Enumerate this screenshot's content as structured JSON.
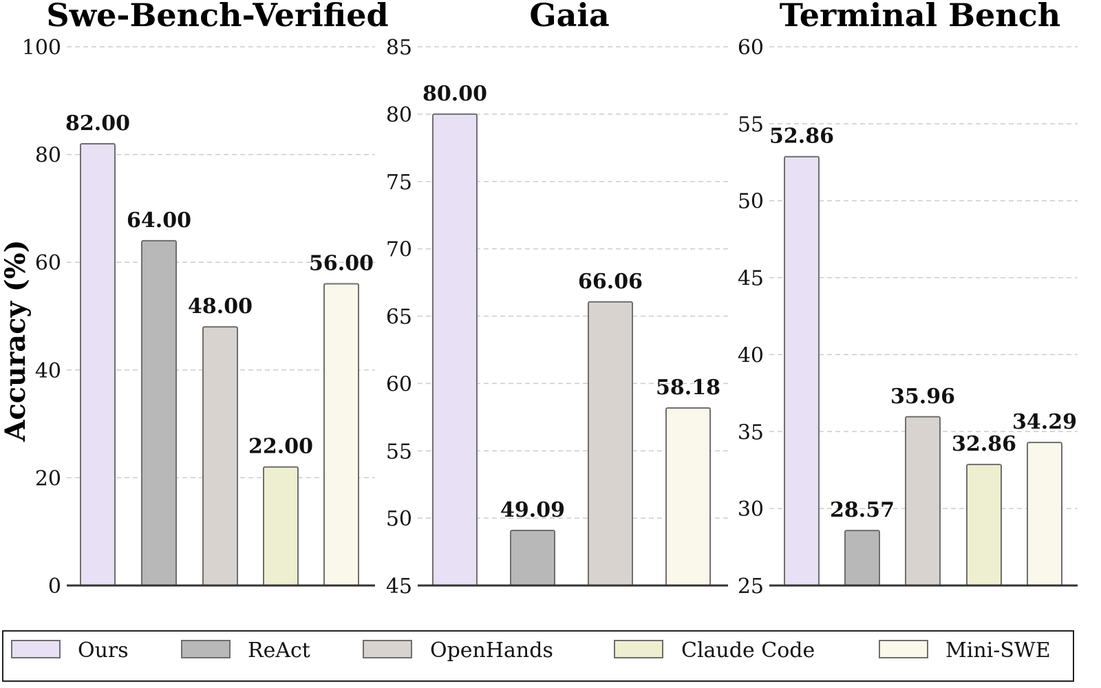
{
  "ylabel": "Accuracy (%)",
  "legend": [
    {
      "name": "Ours",
      "color": "#e8e0f5"
    },
    {
      "name": "ReAct",
      "color": "#b8b8b8"
    },
    {
      "name": "OpenHands",
      "color": "#d8d3cf"
    },
    {
      "name": "Claude Code",
      "color": "#eeefd0"
    },
    {
      "name": "Mini-SWE",
      "color": "#faf8ea"
    }
  ],
  "chart_data": [
    {
      "type": "bar",
      "title": "Swe-Bench-Verified",
      "categories": [
        "Ours",
        "ReAct",
        "OpenHands",
        "Claude Code",
        "Mini-SWE"
      ],
      "values": [
        82.0,
        64.0,
        48.0,
        22.0,
        56.0
      ],
      "value_labels": [
        "82.00",
        "64.00",
        "48.00",
        "22.00",
        "56.00"
      ],
      "ylim": [
        0,
        100
      ],
      "yticks": [
        0,
        20,
        40,
        60,
        80,
        100
      ],
      "grid": true
    },
    {
      "type": "bar",
      "title": "Gaia",
      "categories": [
        "Ours",
        "ReAct",
        "OpenHands",
        "Mini-SWE"
      ],
      "values": [
        80.0,
        49.09,
        66.06,
        58.18
      ],
      "value_labels": [
        "80.00",
        "49.09",
        "66.06",
        "58.18"
      ],
      "ylim": [
        45,
        85
      ],
      "yticks": [
        45,
        50,
        55,
        60,
        65,
        70,
        75,
        80,
        85
      ],
      "grid": true
    },
    {
      "type": "bar",
      "title": "Terminal Bench",
      "categories": [
        "Ours",
        "ReAct",
        "OpenHands",
        "Claude Code",
        "Mini-SWE"
      ],
      "values": [
        52.86,
        28.57,
        35.96,
        32.86,
        34.29
      ],
      "value_labels": [
        "52.86",
        "28.57",
        "35.96",
        "32.86",
        "34.29"
      ],
      "ylim": [
        25,
        60
      ],
      "yticks": [
        25,
        30,
        35,
        40,
        45,
        50,
        55,
        60
      ],
      "grid": true
    }
  ]
}
